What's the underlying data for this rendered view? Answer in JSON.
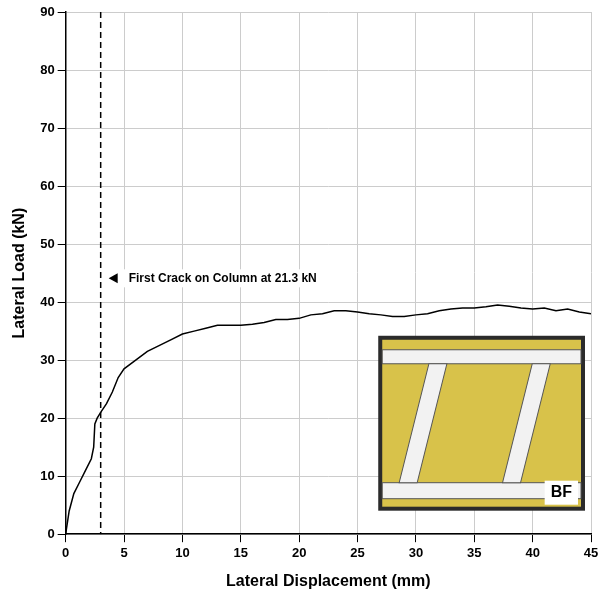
{
  "chart_data": {
    "type": "line",
    "x_label": "Lateral Displacement (mm)",
    "y_label": "Lateral Load (kN)",
    "x": [
      0,
      0.3,
      0.7,
      1.2,
      1.7,
      2.2,
      2.4,
      2.5,
      2.7,
      3,
      3.5,
      4,
      4.5,
      5,
      6,
      7,
      8,
      9,
      10,
      11,
      12,
      13,
      14,
      15,
      16,
      17,
      18,
      19,
      20,
      21,
      22,
      23,
      24,
      25,
      26,
      27,
      28,
      29,
      30,
      31,
      32,
      33,
      34,
      35,
      36,
      37,
      38,
      39,
      40,
      41,
      42,
      43,
      44,
      45
    ],
    "values": [
      0,
      4,
      7,
      9,
      11,
      13,
      15,
      19,
      20,
      21,
      22.5,
      24.5,
      27,
      28.5,
      30,
      31.5,
      32.5,
      33.5,
      34.5,
      35,
      35.5,
      36,
      36,
      36,
      36.2,
      36.5,
      37,
      37,
      37.2,
      37.8,
      38,
      38.5,
      38.5,
      38.3,
      38,
      37.8,
      37.5,
      37.5,
      37.8,
      38,
      38.5,
      38.8,
      39,
      39,
      39.2,
      39.5,
      39.3,
      39,
      38.8,
      39,
      38.5,
      38.8,
      38.3,
      38
    ],
    "color": "#000000",
    "xlim": [
      0,
      45
    ],
    "xticks": [
      0,
      5,
      10,
      15,
      20,
      25,
      30,
      35,
      40,
      45
    ],
    "ylim": [
      0,
      90
    ],
    "yticks": [
      0,
      10,
      20,
      30,
      40,
      50,
      60,
      70,
      80,
      90
    ],
    "grid": true,
    "annotations": [
      {
        "text": "First Crack on Column at 21.3 kN",
        "x": 3,
        "line_style": "dashed"
      }
    ],
    "inset_label": "BF"
  }
}
